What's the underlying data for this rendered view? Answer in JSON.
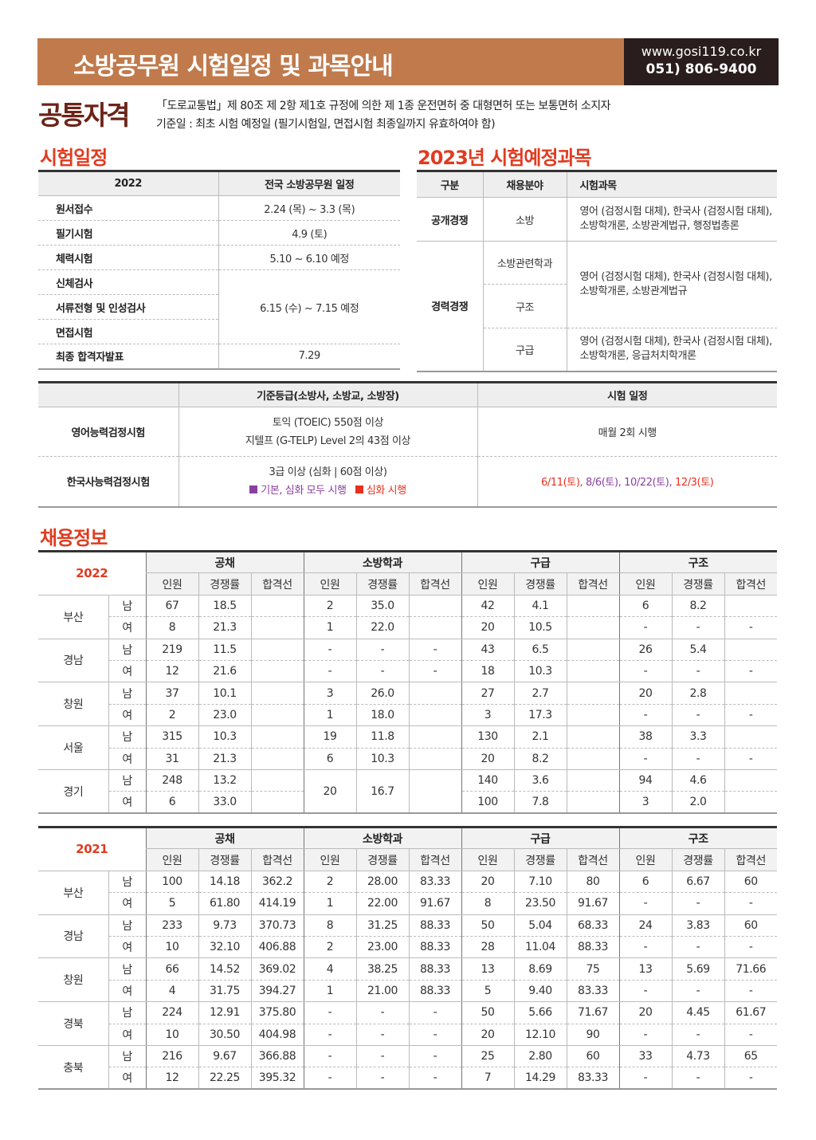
{
  "header": {
    "title": "소방공무원 시험일정 및 과목안내",
    "url": "www.gosi119.co.kr",
    "phone": "051) 806-9400",
    "brand_color": "#c07a4c"
  },
  "qualification": {
    "title": "공통자격",
    "line1": "「도로교통법」제 80조 제 2항 제1호 규정에 의한 제 1종 운전면허 중 대형면허 또는 보통면허 소지자",
    "line2": "기준일 : 최초 시험 예정일 (필기시험일, 면접시험 최종일까지 유효하여야 함)"
  },
  "schedule": {
    "title": "시험일정",
    "col1": "2022",
    "col2": "전국 소방공무원 일정",
    "rows": [
      {
        "label": "원서접수",
        "value": "2.24 (목) ~ 3.3 (목)"
      },
      {
        "label": "필기시험",
        "value": "4.9 (토)"
      },
      {
        "label": "체력시험",
        "value": "5.10 ~ 6.10 예정"
      },
      {
        "label": "신체검사",
        "value": "6.15 (수) ~ 7.15 예정"
      },
      {
        "label": "서류전형 및 인성검사"
      },
      {
        "label": "면접시험"
      },
      {
        "label": "최종 합격자발표",
        "value": "7.29"
      }
    ]
  },
  "subjects": {
    "title": "2023년 시험예정과목",
    "headers": [
      "구분",
      "채용분야",
      "시험과목"
    ],
    "open": {
      "type": "공개경쟁",
      "field": "소방",
      "subjects": [
        "영어 (검정시험 대체), 한국사 (검정시험 대체),",
        "소방학개론, 소방관계법규, 행정법총론"
      ]
    },
    "career": {
      "type": "경력경쟁",
      "fields": [
        "소방관련학과",
        "구조",
        "구급"
      ],
      "subjects_a": [
        "영어 (검정시험 대체), 한국사 (검정시험 대체),",
        "소방학개론, 소방관계법규"
      ],
      "subjects_b": [
        "영어 (검정시험 대체), 한국사 (검정시험 대체),",
        "소방학개론, 응급처치학개론"
      ]
    }
  },
  "certs": {
    "headers": [
      "기준등급(소방사, 소방교, 소방장)",
      "시험 일정"
    ],
    "english": {
      "name": "영어능력검정시험",
      "grade1": "토익 (TOEIC) 550점 이상",
      "grade2": "지텔프 (G-TELP) Level 2의 43점 이상",
      "schedule": "매월 2회 시행"
    },
    "history": {
      "name": "한국사능력검정시험",
      "grade": "3급 이상 (심화 | 60점 이상)",
      "legend_both": "기본, 심화 모두 시행",
      "legend_adv": "심화 시행",
      "dates": [
        {
          "text": "6/11(토)",
          "type": "adv"
        },
        {
          "text": "8/6(토)",
          "type": "both"
        },
        {
          "text": "10/22(토)",
          "type": "both"
        },
        {
          "text": "12/3(토)",
          "type": "adv"
        }
      ],
      "colors": {
        "both": "#8a3fa0",
        "adv": "#e8301e"
      }
    }
  },
  "recruit": {
    "title": "채용정보",
    "groups": [
      "공채",
      "소방학과",
      "구급",
      "구조"
    ],
    "subheaders": [
      "인원",
      "경쟁률",
      "합격선"
    ],
    "genders": [
      "남",
      "여"
    ],
    "tables": [
      {
        "year": "2022",
        "regions": [
          {
            "name": "부산",
            "m": [
              "67",
              "18.5",
              "",
              "2",
              "35.0",
              "",
              "42",
              "4.1",
              "",
              "6",
              "8.2",
              ""
            ],
            "f": [
              "8",
              "21.3",
              "",
              "1",
              "22.0",
              "",
              "20",
              "10.5",
              "",
              "-",
              "-",
              "-"
            ]
          },
          {
            "name": "경남",
            "m": [
              "219",
              "11.5",
              "",
              "-",
              "-",
              "-",
              "43",
              "6.5",
              "",
              "26",
              "5.4",
              ""
            ],
            "f": [
              "12",
              "21.6",
              "",
              "-",
              "-",
              "-",
              "18",
              "10.3",
              "",
              "-",
              "-",
              "-"
            ]
          },
          {
            "name": "창원",
            "m": [
              "37",
              "10.1",
              "",
              "3",
              "26.0",
              "",
              "27",
              "2.7",
              "",
              "20",
              "2.8",
              ""
            ],
            "f": [
              "2",
              "23.0",
              "",
              "1",
              "18.0",
              "",
              "3",
              "17.3",
              "",
              "-",
              "-",
              "-"
            ]
          },
          {
            "name": "서울",
            "m": [
              "315",
              "10.3",
              "",
              "19",
              "11.8",
              "",
              "130",
              "2.1",
              "",
              "38",
              "3.3",
              ""
            ],
            "f": [
              "31",
              "21.3",
              "",
              "6",
              "10.3",
              "",
              "20",
              "8.2",
              "",
              "-",
              "-",
              "-"
            ]
          },
          {
            "name": "경기",
            "m": [
              "248",
              "13.2",
              "",
              "20",
              "16.7",
              "",
              "140",
              "3.6",
              "",
              "94",
              "4.6",
              ""
            ],
            "f": [
              "6",
              "33.0",
              "",
              null,
              null,
              null,
              "100",
              "7.8",
              "",
              "3",
              "2.0",
              ""
            ]
          }
        ]
      },
      {
        "year": "2021",
        "regions": [
          {
            "name": "부산",
            "m": [
              "100",
              "14.18",
              "362.2",
              "2",
              "28.00",
              "83.33",
              "20",
              "7.10",
              "80",
              "6",
              "6.67",
              "60"
            ],
            "f": [
              "5",
              "61.80",
              "414.19",
              "1",
              "22.00",
              "91.67",
              "8",
              "23.50",
              "91.67",
              "-",
              "-",
              "-"
            ]
          },
          {
            "name": "경남",
            "m": [
              "233",
              "9.73",
              "370.73",
              "8",
              "31.25",
              "88.33",
              "50",
              "5.04",
              "68.33",
              "24",
              "3.83",
              "60"
            ],
            "f": [
              "10",
              "32.10",
              "406.88",
              "2",
              "23.00",
              "88.33",
              "28",
              "11.04",
              "88.33",
              "-",
              "-",
              "-"
            ]
          },
          {
            "name": "창원",
            "m": [
              "66",
              "14.52",
              "369.02",
              "4",
              "38.25",
              "88.33",
              "13",
              "8.69",
              "75",
              "13",
              "5.69",
              "71.66"
            ],
            "f": [
              "4",
              "31.75",
              "394.27",
              "1",
              "21.00",
              "88.33",
              "5",
              "9.40",
              "83.33",
              "-",
              "-",
              "-"
            ]
          },
          {
            "name": "경북",
            "m": [
              "224",
              "12.91",
              "375.80",
              "-",
              "-",
              "-",
              "50",
              "5.66",
              "71.67",
              "20",
              "4.45",
              "61.67"
            ],
            "f": [
              "10",
              "30.50",
              "404.98",
              "-",
              "-",
              "-",
              "20",
              "12.10",
              "90",
              "-",
              "-",
              "-"
            ]
          },
          {
            "name": "충북",
            "m": [
              "216",
              "9.67",
              "366.88",
              "-",
              "-",
              "-",
              "25",
              "2.80",
              "60",
              "33",
              "4.73",
              "65"
            ],
            "f": [
              "12",
              "22.25",
              "395.32",
              "-",
              "-",
              "-",
              "7",
              "14.29",
              "83.33",
              "-",
              "-",
              "-"
            ]
          }
        ]
      }
    ]
  }
}
